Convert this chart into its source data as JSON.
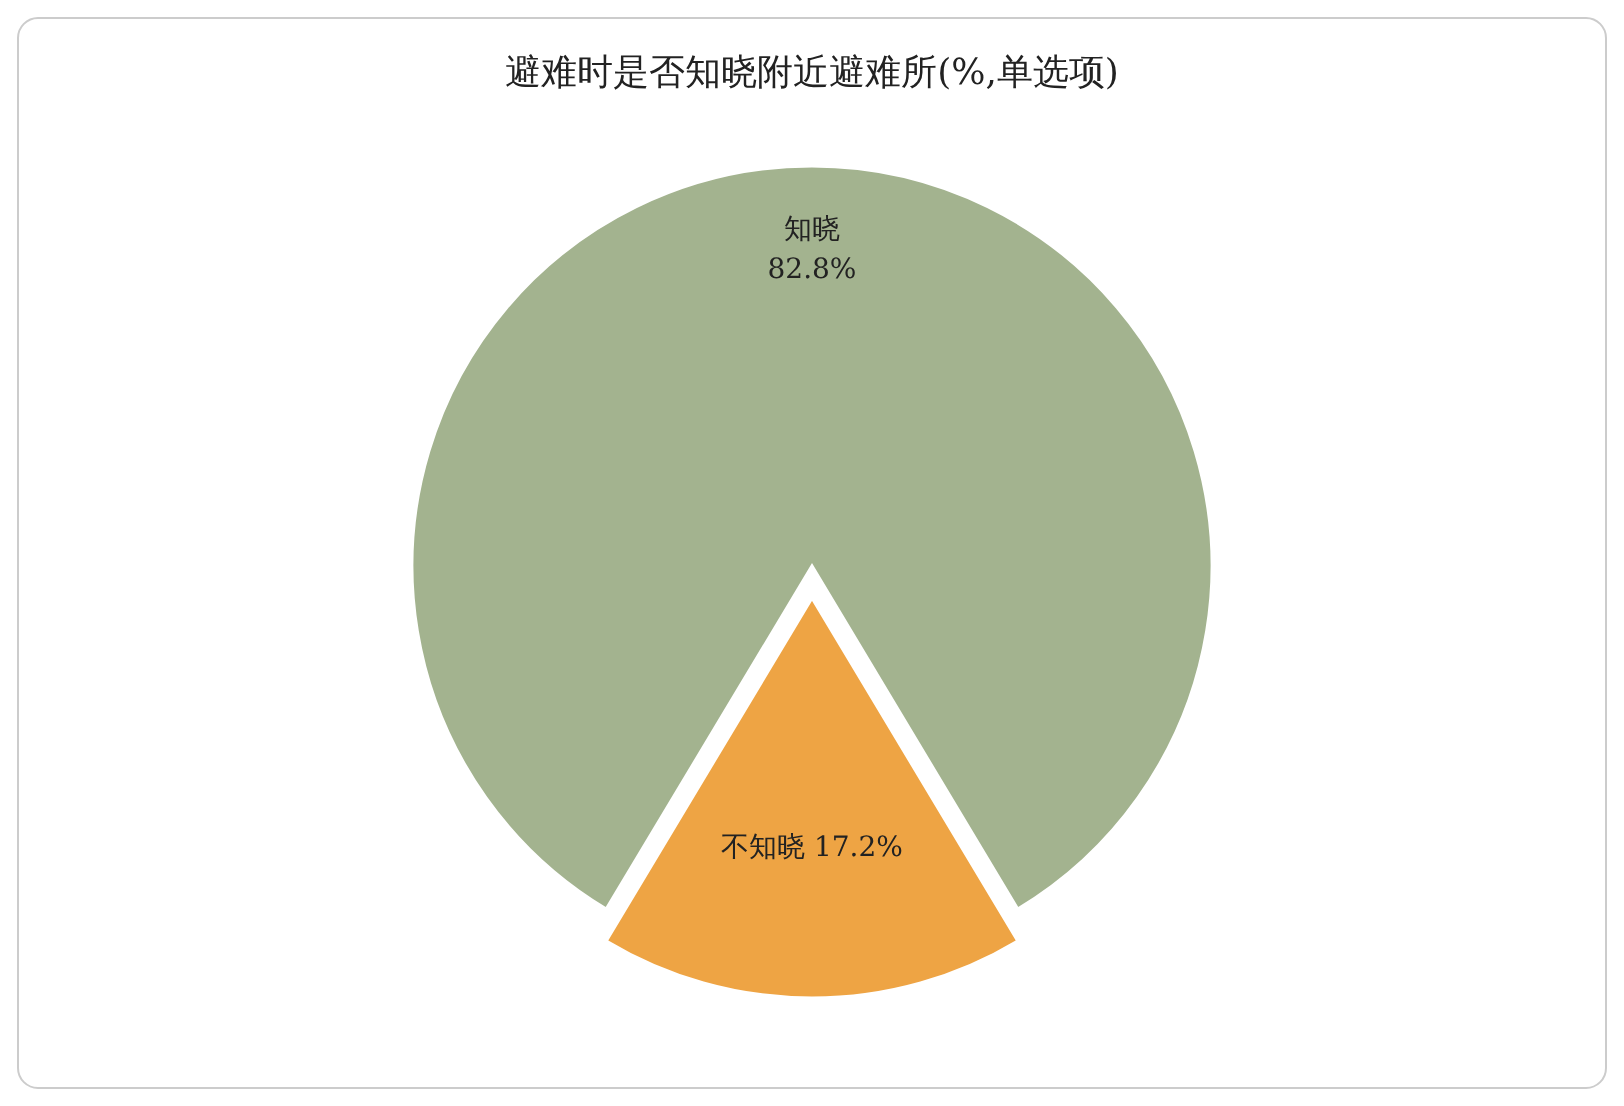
{
  "chart_data": {
    "type": "pie",
    "title": "避难时是否知晓附近避难所(%,单选项)",
    "categories": [
      "知晓",
      "不知晓"
    ],
    "values": [
      82.8,
      17.2
    ],
    "colors": [
      "#a3b38f",
      "#eea444"
    ],
    "value_labels": [
      "82.8%",
      "17.2%"
    ],
    "legend": false
  }
}
